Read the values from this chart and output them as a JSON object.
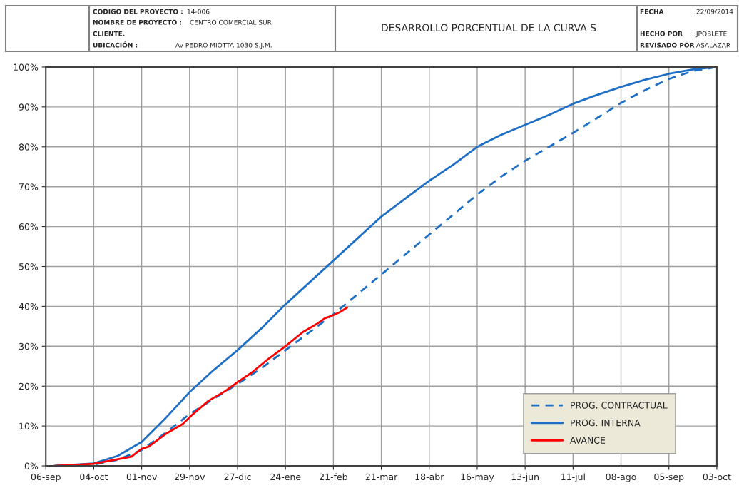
{
  "chart_data": {
    "type": "line",
    "title": "DESARROLLO PORCENTUAL DE LA CURVA S",
    "annotations": [
      "CODIGO DEL PROYECTO :",
      "14-006",
      "NOMBRE DE PROYECTO :",
      "CENTRO COMERCIAL SUR",
      "CLIENTE.",
      "UBICACIÓN :",
      "Av PEDRO MIOTTA 1030 S.J.M.",
      "FECHA",
      ": 22/09/2014",
      "HECHO POR",
      ": JPOBLETE",
      "REVISADO POR",
      ": ASALAZAR"
    ],
    "xlim": [
      "2013-09-06",
      "2014-10-03"
    ],
    "xticks": [
      {
        "value": "2013-09-06",
        "label": "06-sep"
      },
      {
        "value": "2013-10-04",
        "label": "04-oct"
      },
      {
        "value": "2013-11-01",
        "label": "01-nov"
      },
      {
        "value": "2013-11-29",
        "label": "29-nov"
      },
      {
        "value": "2013-12-27",
        "label": "27-dic"
      },
      {
        "value": "2014-01-24",
        "label": "24-ene"
      },
      {
        "value": "2014-02-21",
        "label": "21-feb"
      },
      {
        "value": "2014-03-21",
        "label": "21-mar"
      },
      {
        "value": "2014-04-18",
        "label": "18-abr"
      },
      {
        "value": "2014-05-16",
        "label": "16-may"
      },
      {
        "value": "2014-06-13",
        "label": "13-jun"
      },
      {
        "value": "2014-07-11",
        "label": "11-jul"
      },
      {
        "value": "2014-08-08",
        "label": "08-ago"
      },
      {
        "value": "2014-09-05",
        "label": "05-sep"
      },
      {
        "value": "2014-10-03",
        "label": "03-oct"
      }
    ],
    "ylim": [
      0,
      100
    ],
    "yticks": [
      {
        "value": 0,
        "label": "0%"
      },
      {
        "value": 10,
        "label": "10%"
      },
      {
        "value": 20,
        "label": "20%"
      },
      {
        "value": 30,
        "label": "30%"
      },
      {
        "value": 40,
        "label": "40%"
      },
      {
        "value": 50,
        "label": "50%"
      },
      {
        "value": 60,
        "label": "60%"
      },
      {
        "value": 70,
        "label": "70%"
      },
      {
        "value": 80,
        "label": "80%"
      },
      {
        "value": 90,
        "label": "90%"
      },
      {
        "value": 100,
        "label": "100%"
      }
    ],
    "grid": true,
    "legend": "bottom right",
    "marker": "none",
    "series": [
      {
        "name": "PROG. CONTRACTUAL",
        "color": "#1f6fc5",
        "line_style": "dashed",
        "x": [
          "2013-09-11",
          "2013-10-04",
          "2013-10-18",
          "2013-11-01",
          "2013-11-15",
          "2013-11-29",
          "2013-12-13",
          "2013-12-27",
          "2014-01-10",
          "2014-01-24",
          "2014-02-07",
          "2014-02-21",
          "2014-03-07",
          "2014-03-21",
          "2014-04-04",
          "2014-04-18",
          "2014-05-02",
          "2014-05-16",
          "2014-05-30",
          "2014-06-13",
          "2014-06-27",
          "2014-07-11",
          "2014-07-25",
          "2014-08-08",
          "2014-08-22",
          "2014-09-05",
          "2014-09-19",
          "2014-10-03"
        ],
        "values": [
          0,
          0.3,
          1.5,
          4,
          8.3,
          13,
          16.8,
          20.5,
          24.5,
          29,
          33.5,
          38,
          43,
          48,
          53,
          58,
          63,
          68,
          72.5,
          76.5,
          80,
          83.5,
          87.2,
          91,
          94.2,
          97,
          99,
          100
        ]
      },
      {
        "name": "PROG. INTERNA",
        "color": "#1f6fc5",
        "line_style": "solid",
        "x": [
          "2013-09-11",
          "2013-10-04",
          "2013-10-18",
          "2013-11-01",
          "2013-11-15",
          "2013-11-29",
          "2013-12-13",
          "2013-12-27",
          "2014-01-10",
          "2014-01-24",
          "2014-02-07",
          "2014-02-21",
          "2014-03-07",
          "2014-03-21",
          "2014-04-04",
          "2014-04-18",
          "2014-05-02",
          "2014-05-16",
          "2014-05-30",
          "2014-06-13",
          "2014-06-27",
          "2014-07-11",
          "2014-07-25",
          "2014-08-08",
          "2014-08-22",
          "2014-09-05",
          "2014-09-19",
          "2014-10-03"
        ],
        "values": [
          0,
          0.6,
          2.5,
          6,
          12,
          18.5,
          24,
          29,
          34.5,
          40.5,
          46,
          51.5,
          57,
          62.5,
          67,
          71.5,
          75.5,
          80,
          83,
          85.5,
          88,
          90.8,
          93,
          95,
          96.8,
          98.3,
          99.4,
          100
        ]
      },
      {
        "name": "AVANCE",
        "color": "#ff0000",
        "line_style": "solid",
        "x": [
          "2013-09-11",
          "2013-10-04",
          "2013-10-16",
          "2013-10-26",
          "2013-11-01",
          "2013-11-05",
          "2013-11-15",
          "2013-11-25",
          "2013-12-01",
          "2013-12-10",
          "2013-12-20",
          "2013-12-27",
          "2014-01-04",
          "2014-01-14",
          "2014-01-24",
          "2014-02-03",
          "2014-02-11",
          "2014-02-16",
          "2014-02-21",
          "2014-02-25",
          "2014-03-01"
        ],
        "values": [
          0,
          0.5,
          1.5,
          2.3,
          4.3,
          4.8,
          8,
          10.5,
          13,
          16.3,
          18.8,
          21,
          23.3,
          26.8,
          30,
          33.5,
          35.5,
          37,
          37.8,
          38.6,
          39.7
        ]
      }
    ]
  }
}
